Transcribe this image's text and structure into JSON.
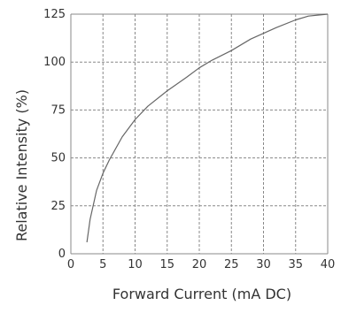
{
  "chart_data": {
    "type": "line",
    "xlabel": "Forward Current (mA DC)",
    "ylabel": "Relative Intensity (%)",
    "xlim": [
      0,
      40
    ],
    "ylim": [
      0,
      125
    ],
    "x_ticks": [
      "0",
      "5",
      "10",
      "15",
      "20",
      "25",
      "30",
      "35",
      "40"
    ],
    "y_ticks": [
      "0",
      "25",
      "50",
      "75",
      "100",
      "125"
    ],
    "grid": true,
    "colors": {
      "curve": "#666666",
      "grid": "#888888",
      "text": "#333333"
    },
    "series": [
      {
        "x": [
          2.5,
          3,
          4,
          5,
          6,
          8,
          10,
          12,
          15,
          18,
          20,
          22,
          25,
          28,
          30,
          32,
          35,
          37,
          40
        ],
        "values": [
          6,
          18,
          33,
          42,
          49,
          61,
          70,
          77,
          85,
          92,
          97,
          101,
          106,
          112,
          115,
          118,
          122,
          124,
          125
        ]
      }
    ]
  }
}
